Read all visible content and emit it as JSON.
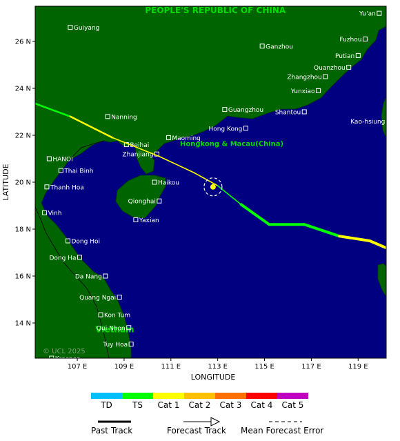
{
  "axes": {
    "x_title": "LONGITUDE",
    "y_title": "LATITUDE",
    "x_ticks": [
      {
        "lon": 107,
        "label": "107 E"
      },
      {
        "lon": 109,
        "label": "109 E"
      },
      {
        "lon": 111,
        "label": "111 E"
      },
      {
        "lon": 113,
        "label": "113 E"
      },
      {
        "lon": 115,
        "label": "115 E"
      },
      {
        "lon": 117,
        "label": "117 E"
      },
      {
        "lon": 119,
        "label": "119 E"
      }
    ],
    "y_ticks": [
      {
        "lat": 26,
        "label": "26 N"
      },
      {
        "lat": 24,
        "label": "24 N"
      },
      {
        "lat": 22,
        "label": "22 N"
      },
      {
        "lat": 20,
        "label": "20 N"
      },
      {
        "lat": 18,
        "label": "18 N"
      },
      {
        "lat": 16,
        "label": "16 N"
      },
      {
        "lat": 14,
        "label": "14 N"
      }
    ],
    "lon_range": [
      105.2,
      120.2
    ],
    "lat_range": [
      12.5,
      27.5
    ]
  },
  "regions": [
    {
      "name": "PEOPLE'S REPUBLIC OF CHINA",
      "lon": 112.9,
      "lat": 27.2
    },
    {
      "name": "Hongkong & Macau(China)",
      "lon": 113.6,
      "lat": 21.55
    },
    {
      "name": "Vietnam",
      "lon": 108.6,
      "lat": 13.6
    }
  ],
  "cities": [
    {
      "name": "Yu'an",
      "lon": 119.9,
      "lat": 27.2,
      "side": "left"
    },
    {
      "name": "Guiyang",
      "lon": 106.7,
      "lat": 26.6,
      "side": "right"
    },
    {
      "name": "Ganzhou",
      "lon": 114.9,
      "lat": 25.8,
      "side": "right"
    },
    {
      "name": "Fuzhou",
      "lon": 119.3,
      "lat": 26.1,
      "side": "left"
    },
    {
      "name": "Putian",
      "lon": 119.0,
      "lat": 25.4,
      "side": "left"
    },
    {
      "name": "Quanzhou",
      "lon": 118.6,
      "lat": 24.9,
      "side": "left"
    },
    {
      "name": "Zhangzhou",
      "lon": 117.6,
      "lat": 24.5,
      "side": "left"
    },
    {
      "name": "Yunxiao",
      "lon": 117.3,
      "lat": 23.9,
      "side": "left"
    },
    {
      "name": "Guangzhou",
      "lon": 113.3,
      "lat": 23.1,
      "side": "right"
    },
    {
      "name": "Shantou",
      "lon": 116.7,
      "lat": 23.0,
      "side": "left"
    },
    {
      "name": "Kao-hsiung",
      "lon": 120.3,
      "lat": 22.6,
      "side": "left"
    },
    {
      "name": "Nanning",
      "lon": 108.3,
      "lat": 22.8,
      "side": "right"
    },
    {
      "name": "Hong Kong",
      "lon": 114.2,
      "lat": 22.3,
      "side": "left"
    },
    {
      "name": "Maoming",
      "lon": 110.9,
      "lat": 21.9,
      "side": "right"
    },
    {
      "name": "Beihai",
      "lon": 109.1,
      "lat": 21.6,
      "side": "right"
    },
    {
      "name": "Zhanjiang",
      "lon": 110.4,
      "lat": 21.2,
      "side": "left"
    },
    {
      "name": "HANOI",
      "lon": 105.8,
      "lat": 21.0,
      "side": "right"
    },
    {
      "name": "Thai Binh",
      "lon": 106.3,
      "lat": 20.5,
      "side": "right"
    },
    {
      "name": "Haikou",
      "lon": 110.3,
      "lat": 20.0,
      "side": "right"
    },
    {
      "name": "Thanh Hoa",
      "lon": 105.7,
      "lat": 19.8,
      "side": "right"
    },
    {
      "name": "Qionghai",
      "lon": 110.5,
      "lat": 19.2,
      "side": "left"
    },
    {
      "name": "Vinh",
      "lon": 105.6,
      "lat": 18.7,
      "side": "right"
    },
    {
      "name": "Yaxian",
      "lon": 109.5,
      "lat": 18.4,
      "side": "right"
    },
    {
      "name": "Dong Hoi",
      "lon": 106.6,
      "lat": 17.5,
      "side": "right"
    },
    {
      "name": "Dong Ha",
      "lon": 107.1,
      "lat": 16.8,
      "side": "left"
    },
    {
      "name": "Da Nang",
      "lon": 108.2,
      "lat": 16.0,
      "side": "left"
    },
    {
      "name": "Quang Ngai",
      "lon": 108.8,
      "lat": 15.1,
      "side": "left"
    },
    {
      "name": "Kon Tum",
      "lon": 108.0,
      "lat": 14.35,
      "side": "right"
    },
    {
      "name": "Qui Nhon",
      "lon": 109.2,
      "lat": 13.8,
      "side": "left"
    },
    {
      "name": "Tuy Hoa",
      "lon": 109.3,
      "lat": 13.1,
      "side": "left"
    },
    {
      "name": "Kracnen",
      "lon": 105.9,
      "lat": 12.5,
      "side": "right"
    }
  ],
  "track": [
    {
      "lon": 105.2,
      "lat": 23.35,
      "cat": "TS"
    },
    {
      "lon": 106.7,
      "lat": 22.8,
      "cat": "TS"
    },
    {
      "lon": 108.5,
      "lat": 21.9,
      "cat": "Cat 1"
    },
    {
      "lon": 110.5,
      "lat": 21.1,
      "cat": "Cat 1"
    },
    {
      "lon": 112.0,
      "lat": 20.4,
      "cat": "Cat 1"
    },
    {
      "lon": 113.0,
      "lat": 19.85,
      "cat": "Cat 1"
    },
    {
      "lon": 114.0,
      "lat": 19.05,
      "cat": "TS"
    },
    {
      "lon": 115.2,
      "lat": 18.2,
      "cat": "TS"
    },
    {
      "lon": 116.7,
      "lat": 18.2,
      "cat": "TS"
    },
    {
      "lon": 118.2,
      "lat": 17.7,
      "cat": "TS"
    },
    {
      "lon": 119.5,
      "lat": 17.5,
      "cat": "Cat 1"
    },
    {
      "lon": 120.2,
      "lat": 17.2,
      "cat": "Cat 1"
    }
  ],
  "current_position": {
    "lon": 112.8,
    "lat": 19.8
  },
  "watermark": "© UCL 2025",
  "legend": {
    "categories": [
      {
        "name": "TD",
        "color": "#00bfff"
      },
      {
        "name": "TS",
        "color": "#00ff00"
      },
      {
        "name": "Cat 1",
        "color": "#ffff00"
      },
      {
        "name": "Cat 2",
        "color": "#ffc000"
      },
      {
        "name": "Cat 3",
        "color": "#ff7000"
      },
      {
        "name": "Cat 4",
        "color": "#ff0000"
      },
      {
        "name": "Cat 5",
        "color": "#c000c0"
      }
    ],
    "past_track": "Past Track",
    "forecast_track": "Forecast Track",
    "error": "Mean Forecast Error"
  },
  "colors": {
    "land": "#006400",
    "sea": "#000080",
    "region_label": "#00dd00",
    "city_label": "#ffffff"
  }
}
